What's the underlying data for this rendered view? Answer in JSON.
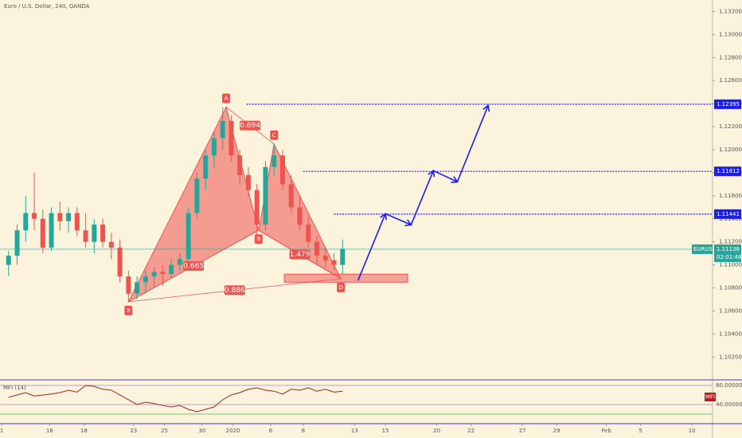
{
  "chart_data": {
    "type": "candlestick",
    "title": "Euro / U.S. Dollar, 240, OANDA",
    "x": [
      0.5,
      1.0,
      1.5,
      2.0,
      2.5,
      3.0,
      3.5,
      4.0,
      4.5,
      5.0,
      5.5,
      6.0,
      6.5,
      7.0,
      7.5,
      8.0,
      8.5,
      9.0,
      9.5,
      10.0,
      10.5,
      11.0,
      11.5,
      12.0,
      12.5,
      13.0,
      13.5,
      14.0,
      14.5,
      15.0,
      15.5,
      16.0,
      16.5,
      17.0,
      17.5,
      18.0,
      18.5,
      19.0,
      19.5,
      20.0
    ],
    "open": [
      1.11,
      1.1108,
      1.113,
      1.1145,
      1.114,
      1.1115,
      1.1145,
      1.1138,
      1.1145,
      1.113,
      1.112,
      1.1135,
      1.112,
      1.1115,
      1.109,
      1.1075,
      1.1085,
      1.109,
      1.1094,
      1.1092,
      1.11,
      1.1105,
      1.1145,
      1.1175,
      1.1195,
      1.121,
      1.1225,
      1.1195,
      1.1178,
      1.1165,
      1.1135,
      1.1185,
      1.1195,
      1.117,
      1.115,
      1.1135,
      1.112,
      1.1108,
      1.1104,
      1.11
    ],
    "high": [
      1.1112,
      1.1135,
      1.116,
      1.118,
      1.1148,
      1.115,
      1.1155,
      1.115,
      1.115,
      1.1145,
      1.114,
      1.114,
      1.1128,
      1.1122,
      1.1095,
      1.109,
      1.1095,
      1.1098,
      1.11,
      1.1105,
      1.111,
      1.115,
      1.118,
      1.12,
      1.1215,
      1.1237,
      1.123,
      1.12,
      1.1185,
      1.117,
      1.119,
      1.1205,
      1.12,
      1.1178,
      1.116,
      1.1142,
      1.1125,
      1.1115,
      1.111,
      1.1122
    ],
    "low": [
      1.109,
      1.11,
      1.112,
      1.113,
      1.111,
      1.1112,
      1.113,
      1.1128,
      1.1125,
      1.1115,
      1.111,
      1.1115,
      1.1105,
      1.1085,
      1.1068,
      1.107,
      1.1075,
      1.108,
      1.1082,
      1.1088,
      1.1095,
      1.11,
      1.114,
      1.1165,
      1.1185,
      1.12,
      1.119,
      1.117,
      1.116,
      1.112,
      1.113,
      1.1178,
      1.1165,
      1.1145,
      1.113,
      1.1115,
      1.11,
      1.1098,
      1.1095,
      1.1092
    ],
    "close": [
      1.1108,
      1.113,
      1.1145,
      1.114,
      1.1115,
      1.1145,
      1.1138,
      1.1145,
      1.113,
      1.112,
      1.1135,
      1.112,
      1.1115,
      1.109,
      1.1075,
      1.1085,
      1.109,
      1.1094,
      1.1092,
      1.11,
      1.1105,
      1.1145,
      1.1175,
      1.1195,
      1.121,
      1.1225,
      1.1195,
      1.1178,
      1.1165,
      1.1135,
      1.1185,
      1.1195,
      1.117,
      1.115,
      1.1135,
      1.112,
      1.1108,
      1.1104,
      1.11,
      1.1114
    ],
    "up_color": "#26a69a",
    "down_color": "#ef5350",
    "xlim": [
      0,
      41.6
    ],
    "xticks": [
      {
        "value": 0.1,
        "label": "1"
      },
      {
        "value": 2.9,
        "label": "16"
      },
      {
        "value": 4.9,
        "label": "18"
      },
      {
        "value": 7.8,
        "label": "23"
      },
      {
        "value": 9.6,
        "label": "25"
      },
      {
        "value": 11.8,
        "label": "30"
      },
      {
        "value": 13.6,
        "label": "2020"
      },
      {
        "value": 15.8,
        "label": "6"
      },
      {
        "value": 17.7,
        "label": "8"
      },
      {
        "value": 20.7,
        "label": "13"
      },
      {
        "value": 22.5,
        "label": "15"
      },
      {
        "value": 25.5,
        "label": "20"
      },
      {
        "value": 27.5,
        "label": "22"
      },
      {
        "value": 30.5,
        "label": "27"
      },
      {
        "value": 32.5,
        "label": "29"
      },
      {
        "value": 35.4,
        "label": "Feb"
      },
      {
        "value": 37.4,
        "label": "5"
      },
      {
        "value": 40.4,
        "label": "10"
      }
    ],
    "ylim": [
      1.1005,
      1.133
    ],
    "yticks": [
      {
        "value": 1.102,
        "label": "1.10200"
      },
      {
        "value": 1.104,
        "label": "1.10400"
      },
      {
        "value": 1.106,
        "label": "1.10600"
      },
      {
        "value": 1.108,
        "label": "1.10800"
      },
      {
        "value": 1.11,
        "label": "1.11000"
      },
      {
        "value": 1.112,
        "label": "1.11200"
      },
      {
        "value": 1.114,
        "label": "1.11400"
      },
      {
        "value": 1.116,
        "label": "1.11600"
      },
      {
        "value": 1.118,
        "label": "1.11800"
      },
      {
        "value": 1.12,
        "label": "1.12000"
      },
      {
        "value": 1.122,
        "label": "1.12200"
      },
      {
        "value": 1.124,
        "label": "1.12400"
      },
      {
        "value": 1.126,
        "label": "1.12600"
      },
      {
        "value": 1.128,
        "label": "1.12800"
      },
      {
        "value": 1.13,
        "label": "1.13000"
      },
      {
        "value": 1.132,
        "label": "1.13200"
      }
    ],
    "last_price": {
      "symbol": "EURUSD",
      "value": 1.11136,
      "label": "1.11136",
      "countdown": "02:01:48",
      "color": "#26a69a"
    },
    "pattern": {
      "color": "#ef5350",
      "points": [
        {
          "label": "X",
          "x": 7.5,
          "y": 1.1068
        },
        {
          "label": "A",
          "x": 13.2,
          "y": 1.1237
        },
        {
          "label": "B",
          "x": 15.1,
          "y": 1.113
        },
        {
          "label": "C",
          "x": 16.0,
          "y": 1.1205
        },
        {
          "label": "D",
          "x": 19.9,
          "y": 1.1088
        }
      ],
      "ratios": [
        0.694,
        0.665,
        1.479,
        0.886
      ]
    },
    "targets": [
      {
        "value": 1.12395,
        "label": "1.12395",
        "start": 14.4
      },
      {
        "value": 1.11812,
        "label": "1.11812",
        "start": 17.7
      },
      {
        "value": 1.11441,
        "label": "1.11441",
        "start": 19.5
      }
    ],
    "target_color": "#1a1aff",
    "zone": {
      "x": [
        16.6,
        23.8
      ],
      "y": [
        1.1085,
        1.1092
      ]
    },
    "projection": {
      "x": [
        20.9,
        22.5,
        24.0,
        25.3,
        26.7,
        28.5
      ],
      "y": [
        1.10864,
        1.11444,
        1.11348,
        1.11818,
        1.11721,
        1.12384
      ]
    },
    "indicator": {
      "type": "line",
      "title": "MFI (14)",
      "badge": "MFI",
      "color": "#9c2727",
      "values": [
        55,
        60,
        65,
        58,
        60,
        62,
        65,
        70,
        66,
        80,
        78,
        72,
        70,
        60,
        50,
        40,
        45,
        42,
        38,
        35,
        38,
        30,
        25,
        30,
        35,
        50,
        60,
        65,
        72,
        75,
        70,
        68,
        62,
        72,
        70,
        75,
        68,
        72,
        66,
        68
      ],
      "ylim": [
        3.3,
        90
      ],
      "yticks": [
        {
          "value": 80,
          "label": "80.000000"
        },
        {
          "value": 40,
          "label": "40.000000"
        }
      ]
    }
  }
}
